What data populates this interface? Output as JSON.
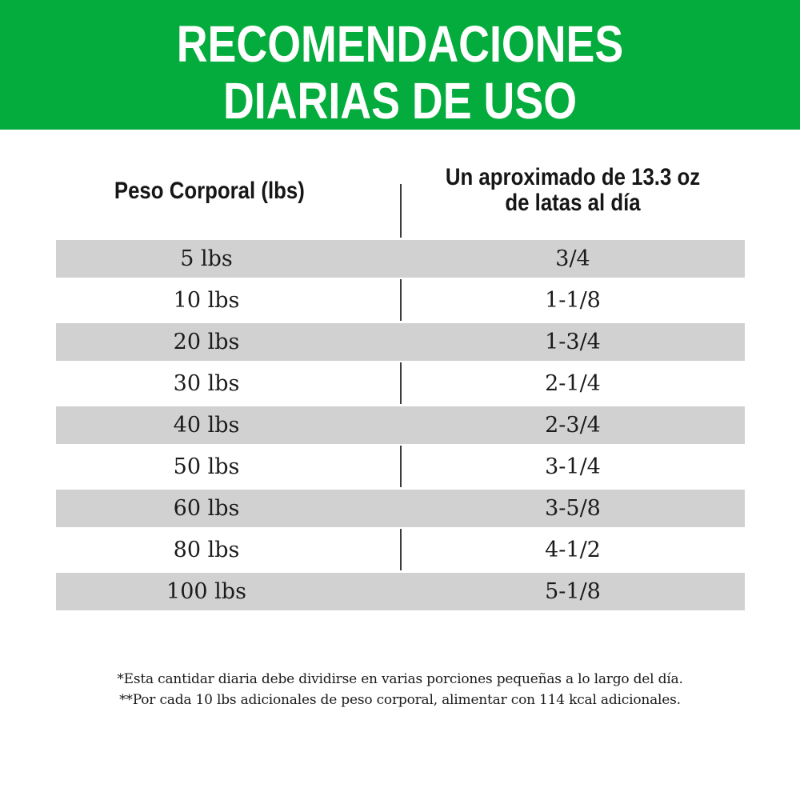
{
  "banner": {
    "title_line1": "RECOMENDACIONES",
    "title_line2": "DIARIAS DE USO",
    "bg_color": "#04AC3D",
    "text_color": "#FFFFFF"
  },
  "table": {
    "header_weight": "Peso Corporal (lbs)",
    "header_cans_line1": "Un aproximado de 13.3 oz",
    "header_cans_line2": "de latas al día",
    "stripe_color": "#D1D1D1",
    "rows": [
      {
        "weight": "5 lbs",
        "cans": "3/4"
      },
      {
        "weight": "10 lbs",
        "cans": "1-1/8"
      },
      {
        "weight": "20 lbs",
        "cans": "1-3/4"
      },
      {
        "weight": "30 lbs",
        "cans": "2-1/4"
      },
      {
        "weight": "40 lbs",
        "cans": "2-3/4"
      },
      {
        "weight": "50 lbs",
        "cans": "3-1/4"
      },
      {
        "weight": "60 lbs",
        "cans": "3-5/8"
      },
      {
        "weight": "80 lbs",
        "cans": "4-1/2"
      },
      {
        "weight": "100 lbs",
        "cans": "5-1/8"
      }
    ]
  },
  "footnotes": {
    "line1": "*Esta cantidar diaria debe dividirse en varias porciones pequeñas a lo largo del día.",
    "line2": "**Por cada 10 lbs adicionales de peso corporal, alimentar con 114 kcal adicionales."
  },
  "chart_data": {
    "type": "table",
    "title": "RECOMENDACIONES DIARIAS DE USO",
    "columns": [
      "Peso Corporal (lbs)",
      "Un aproximado de 13.3 oz de latas al día"
    ],
    "rows": [
      [
        "5 lbs",
        "3/4"
      ],
      [
        "10 lbs",
        "1-1/8"
      ],
      [
        "20 lbs",
        "1-3/4"
      ],
      [
        "30 lbs",
        "2-1/4"
      ],
      [
        "40 lbs",
        "2-3/4"
      ],
      [
        "50 lbs",
        "3-1/4"
      ],
      [
        "60 lbs",
        "3-5/8"
      ],
      [
        "80 lbs",
        "4-1/2"
      ],
      [
        "100 lbs",
        "5-1/8"
      ]
    ],
    "footnotes": [
      "*Esta cantidar diaria debe dividirse en varias porciones pequeñas a lo largo del día.",
      "**Por cada 10 lbs adicionales de peso corporal, alimentar con 114 kcal adicionales."
    ],
    "layout": {
      "stripe_rows": "odd rows shaded gray",
      "column_divider": "vertical line at center",
      "header_banner_color": "#04AC3D"
    }
  }
}
